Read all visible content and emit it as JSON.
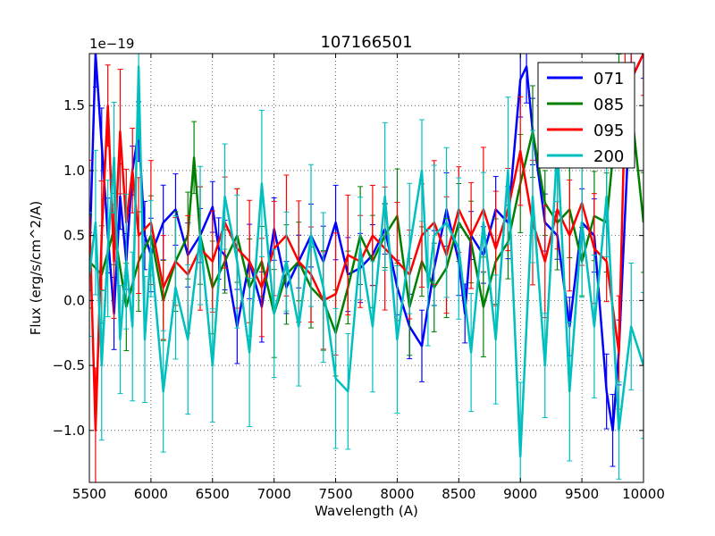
{
  "chart_data": {
    "type": "line",
    "title": "107166501",
    "xlabel": "Wavelength (A)",
    "ylabel": "Flux (erg/s/cm^2/A)",
    "y_scale_label": "1e−19",
    "xlim": [
      5500,
      10000
    ],
    "ylim": [
      -1.4,
      1.9
    ],
    "x_ticks": [
      5500,
      6000,
      6500,
      7000,
      7500,
      8000,
      8500,
      9000,
      9500,
      10000
    ],
    "x_tick_labels": [
      "5500",
      "6000",
      "6500",
      "7000",
      "7500",
      "8000",
      "8500",
      "9000",
      "9500",
      "10000"
    ],
    "y_ticks": [
      -1.0,
      -0.5,
      0.0,
      0.5,
      1.0,
      1.5
    ],
    "y_tick_labels": [
      "−1.0",
      "−0.5",
      "0.0",
      "0.5",
      "1.0",
      "1.5"
    ],
    "grid": true,
    "legend_position": "top-right",
    "series": [
      {
        "name": "071",
        "color": "#0000ff",
        "x": [
          5500,
          5550,
          5600,
          5650,
          5700,
          5750,
          5800,
          5850,
          5900,
          5950,
          6000,
          6100,
          6200,
          6300,
          6400,
          6500,
          6550,
          6600,
          6700,
          6800,
          6900,
          7000,
          7100,
          7200,
          7300,
          7400,
          7500,
          7600,
          7700,
          7800,
          7900,
          8000,
          8100,
          8200,
          8300,
          8400,
          8500,
          8550,
          8600,
          8700,
          8800,
          8900,
          9000,
          9050,
          9100,
          9200,
          9300,
          9400,
          9500,
          9600,
          9700,
          9750,
          9800,
          9900,
          10000
        ],
        "y": [
          0.3,
          1.9,
          1.2,
          0.5,
          -0.1,
          0.8,
          0.3,
          1.0,
          1.3,
          0.5,
          0.35,
          0.6,
          0.7,
          0.35,
          0.5,
          0.72,
          0.4,
          0.35,
          -0.2,
          0.3,
          -0.05,
          0.55,
          0.1,
          0.3,
          0.5,
          0.3,
          0.6,
          0.2,
          0.25,
          0.35,
          0.55,
          0.1,
          -0.2,
          -0.35,
          0.25,
          0.7,
          0.3,
          -0.1,
          0.5,
          0.35,
          0.7,
          0.6,
          1.7,
          1.8,
          1.3,
          0.6,
          0.5,
          -0.2,
          0.6,
          0.5,
          -0.7,
          -1.0,
          -0.4,
          1.7,
          1.9
        ]
      },
      {
        "name": "085",
        "color": "#008000",
        "x": [
          5500,
          5600,
          5700,
          5800,
          5900,
          6000,
          6100,
          6200,
          6300,
          6350,
          6400,
          6500,
          6600,
          6700,
          6800,
          6900,
          7000,
          7100,
          7200,
          7300,
          7400,
          7500,
          7600,
          7700,
          7800,
          7900,
          8000,
          8100,
          8200,
          8300,
          8400,
          8500,
          8600,
          8700,
          8800,
          8900,
          9000,
          9100,
          9200,
          9300,
          9400,
          9500,
          9600,
          9700,
          9800,
          9900,
          10000
        ],
        "y": [
          0.3,
          0.2,
          0.55,
          -0.05,
          0.3,
          0.5,
          0.0,
          0.3,
          0.5,
          1.1,
          0.5,
          0.1,
          0.3,
          0.5,
          0.1,
          0.3,
          -0.1,
          0.2,
          0.3,
          0.1,
          0.0,
          -0.25,
          0.1,
          0.5,
          0.3,
          0.5,
          0.65,
          -0.05,
          0.3,
          0.1,
          0.25,
          0.6,
          0.45,
          -0.05,
          0.3,
          0.45,
          0.9,
          1.3,
          0.75,
          0.6,
          0.7,
          0.3,
          0.65,
          0.6,
          1.6,
          1.5,
          0.6
        ]
      },
      {
        "name": "095",
        "color": "#ff0000",
        "x": [
          5500,
          5550,
          5600,
          5650,
          5700,
          5750,
          5800,
          5850,
          5900,
          6000,
          6100,
          6200,
          6300,
          6400,
          6500,
          6600,
          6700,
          6800,
          6900,
          7000,
          7100,
          7200,
          7300,
          7400,
          7500,
          7600,
          7700,
          7800,
          7900,
          8000,
          8100,
          8200,
          8300,
          8400,
          8500,
          8600,
          8700,
          8800,
          8900,
          9000,
          9100,
          9200,
          9300,
          9400,
          9500,
          9600,
          9700,
          9800,
          9850,
          9900,
          10000
        ],
        "y": [
          0.65,
          -1.0,
          0.5,
          1.5,
          0.3,
          1.3,
          0.6,
          1.0,
          0.5,
          0.6,
          0.1,
          0.3,
          0.2,
          0.4,
          0.3,
          0.6,
          0.4,
          0.3,
          0.1,
          0.4,
          0.5,
          0.3,
          0.2,
          0.0,
          0.05,
          0.35,
          0.3,
          0.5,
          0.4,
          0.3,
          0.2,
          0.5,
          0.6,
          0.35,
          0.7,
          0.5,
          0.7,
          0.4,
          0.7,
          1.15,
          0.6,
          0.3,
          0.7,
          0.5,
          0.75,
          0.4,
          0.3,
          -0.4,
          1.5,
          1.7,
          1.9
        ]
      },
      {
        "name": "200",
        "color": "#00bfbf",
        "x": [
          5500,
          5550,
          5600,
          5650,
          5700,
          5750,
          5800,
          5850,
          5900,
          5950,
          6000,
          6100,
          6200,
          6300,
          6400,
          6500,
          6600,
          6700,
          6800,
          6900,
          7000,
          7100,
          7200,
          7300,
          7400,
          7500,
          7600,
          7700,
          7800,
          7900,
          8000,
          8100,
          8200,
          8250,
          8300,
          8400,
          8500,
          8600,
          8700,
          8800,
          8900,
          9000,
          9100,
          9200,
          9300,
          9400,
          9500,
          9600,
          9700,
          9800,
          9900,
          10000
        ],
        "y": [
          0.2,
          0.6,
          -0.5,
          0.4,
          1.1,
          -0.3,
          0.3,
          -0.2,
          1.8,
          -0.3,
          0.4,
          -0.7,
          0.1,
          -0.3,
          0.5,
          -0.5,
          0.8,
          0.3,
          -0.4,
          0.9,
          -0.1,
          0.3,
          -0.2,
          0.5,
          0.1,
          -0.6,
          -0.7,
          0.4,
          -0.2,
          0.8,
          -0.3,
          0.4,
          1.0,
          0.1,
          0.5,
          0.6,
          0.4,
          -0.4,
          0.6,
          -0.3,
          1.0,
          -1.2,
          0.8,
          -0.5,
          1.2,
          -0.7,
          0.6,
          -0.2,
          0.8,
          -1.0,
          -0.2,
          -0.5
        ]
      }
    ]
  }
}
